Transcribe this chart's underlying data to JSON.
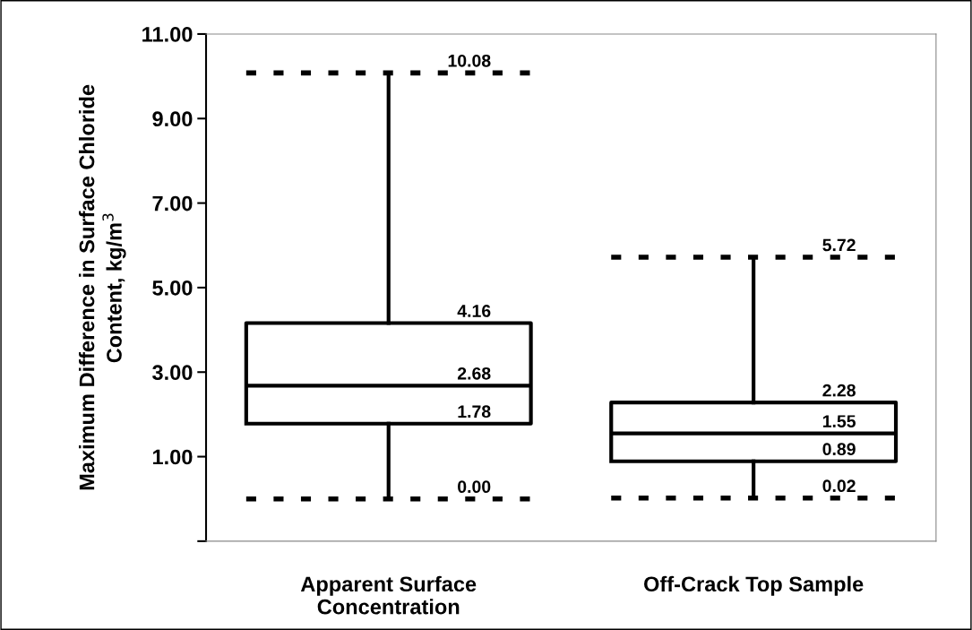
{
  "chart_data": {
    "type": "box",
    "ylabel": "Maximum Difference in Surface Chloride\nContent, kg/m$^{3}$",
    "categories": [
      "Apparent Surface\nConcentration",
      "Off-Crack Top Sample"
    ],
    "boxes": [
      {
        "low": 0.0,
        "q1": 1.78,
        "median": 2.68,
        "q3": 4.16,
        "high": 10.08
      },
      {
        "low": 0.02,
        "q1": 0.89,
        "median": 1.55,
        "q3": 2.28,
        "high": 5.72
      }
    ],
    "ylim": [
      -1,
      11
    ],
    "yticks": [
      {
        "value": -1,
        "label": null
      },
      {
        "value": 1,
        "label": "1.00"
      },
      {
        "value": 3,
        "label": "3.00"
      },
      {
        "value": 5,
        "label": "5.00"
      },
      {
        "value": 7,
        "label": "7.00"
      },
      {
        "value": 9,
        "label": "9.00"
      },
      {
        "value": 11,
        "label": "11.00"
      }
    ],
    "value_labels": [
      [
        "0.00",
        "1.78",
        "2.68",
        "4.16",
        "10.08"
      ],
      [
        "0.02",
        "0.89",
        "1.55",
        "2.28",
        "5.72"
      ]
    ],
    "grid": false,
    "legend": false
  }
}
